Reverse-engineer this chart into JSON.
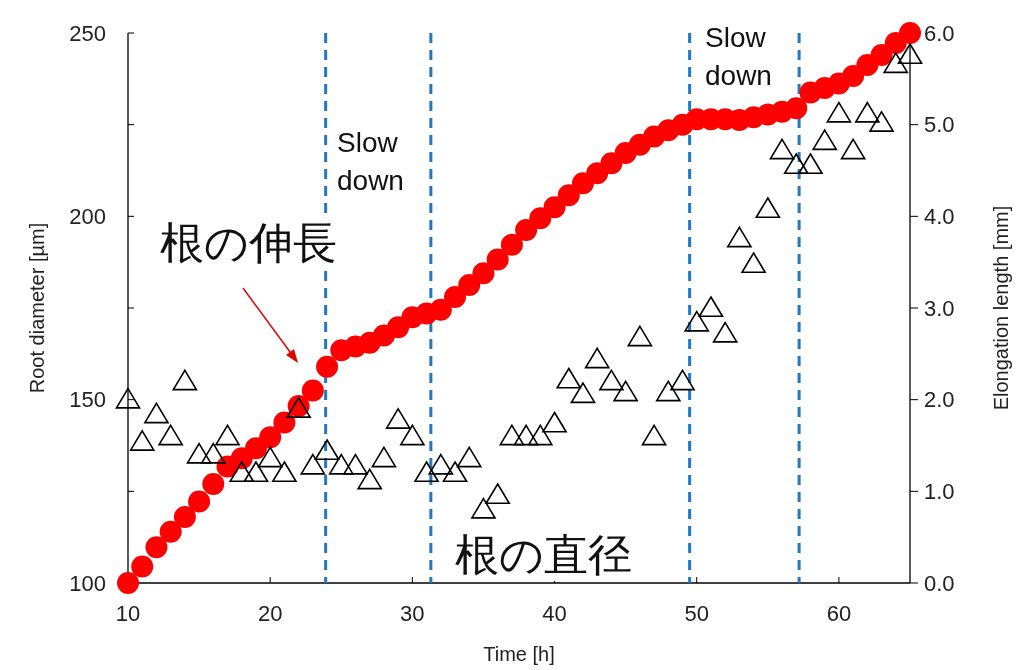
{
  "chart_data": {
    "type": "scatter",
    "xlabel": "Time [h]",
    "ylabel": "Root diameter [µm]",
    "y2label": "Elongation length [mm]",
    "xlim": [
      10,
      65
    ],
    "xticks": [
      10,
      20,
      30,
      40,
      50,
      60
    ],
    "ylim": [
      100,
      250
    ],
    "yticks": [
      100,
      {
        "value": 125,
        "label": null
      },
      150,
      {
        "value": 175,
        "label": null
      },
      200,
      {
        "value": 225,
        "label": null
      },
      250
    ],
    "y2lim": [
      0,
      6
    ],
    "y2ticks": [
      {
        "value": 0,
        "label": "0.0"
      },
      {
        "value": 1,
        "label": "1.0"
      },
      {
        "value": 2,
        "label": "2.0"
      },
      {
        "value": 3,
        "label": "3.0"
      },
      {
        "value": 4,
        "label": "4.0"
      },
      {
        "value": 5,
        "label": "5.0"
      },
      {
        "value": 6,
        "label": "6.0"
      }
    ],
    "series": [
      {
        "marker": "triangle",
        "color": "#000000",
        "x": [
          10,
          11,
          12,
          13,
          14,
          15,
          16,
          17,
          18,
          19,
          20,
          21,
          22,
          23,
          24,
          25,
          26,
          27,
          28,
          29,
          30,
          31,
          32,
          33,
          34,
          35,
          36,
          37,
          38,
          39,
          40,
          41,
          42,
          43,
          44,
          45,
          46,
          47,
          48,
          49,
          50,
          51,
          52,
          53,
          54,
          55,
          56,
          57,
          58,
          59,
          60,
          61,
          62,
          63,
          64,
          65
        ],
        "values": [
          150,
          138.5,
          146,
          140,
          155,
          135,
          135,
          140,
          130,
          130,
          134,
          130,
          147.5,
          132,
          136,
          132,
          132,
          128,
          134,
          144.5,
          140,
          130,
          132,
          130,
          134,
          120,
          124,
          140,
          140,
          140,
          143.5,
          155.5,
          151.5,
          161,
          155,
          152,
          167,
          140,
          152,
          155,
          171,
          175,
          168,
          194,
          187,
          202,
          218,
          214,
          214,
          220.5,
          228,
          218,
          228,
          225.5,
          241.5,
          244
        ]
      },
      {
        "marker": "circle",
        "color": "#ff0000",
        "axis": "y2",
        "x": [
          10,
          11,
          12,
          13,
          14,
          15,
          16,
          17,
          18,
          19,
          20,
          21,
          22,
          23,
          24,
          25,
          26,
          27,
          28,
          29,
          30,
          31,
          32,
          33,
          34,
          35,
          36,
          37,
          38,
          39,
          40,
          41,
          42,
          43,
          44,
          45,
          46,
          47,
          48,
          49,
          50,
          51,
          52,
          53,
          54,
          55,
          56,
          57,
          58,
          59,
          60,
          61,
          62,
          63,
          64,
          65
        ],
        "values": [
          0.0,
          0.18,
          0.39,
          0.56,
          0.72,
          0.89,
          1.08,
          1.27,
          1.36,
          1.47,
          1.59,
          1.75,
          1.93,
          2.1,
          2.36,
          2.54,
          2.58,
          2.62,
          2.7,
          2.79,
          2.9,
          2.94,
          2.98,
          3.12,
          3.25,
          3.38,
          3.53,
          3.69,
          3.85,
          3.98,
          4.1,
          4.23,
          4.36,
          4.47,
          4.58,
          4.69,
          4.78,
          4.87,
          4.94,
          5.0,
          5.06,
          5.06,
          5.06,
          5.05,
          5.08,
          5.11,
          5.14,
          5.18,
          5.35,
          5.4,
          5.45,
          5.53,
          5.65,
          5.76,
          5.89,
          6.0
        ]
      }
    ],
    "ref_lines": [
      {
        "axis": "x",
        "value": 23.9,
        "color": "#1f78c8",
        "line_style": "dashed"
      },
      {
        "axis": "x",
        "value": 31.3,
        "color": "#1f78c8",
        "line_style": "dashed"
      },
      {
        "axis": "x",
        "value": 49.5,
        "color": "#1f78c8",
        "line_style": "dashed"
      },
      {
        "axis": "x",
        "value": 57.2,
        "color": "#1f78c8",
        "line_style": "dashed"
      }
    ],
    "annotations": [
      "Slow down",
      "Slow down",
      "根の伸長",
      "根の直径"
    ]
  }
}
